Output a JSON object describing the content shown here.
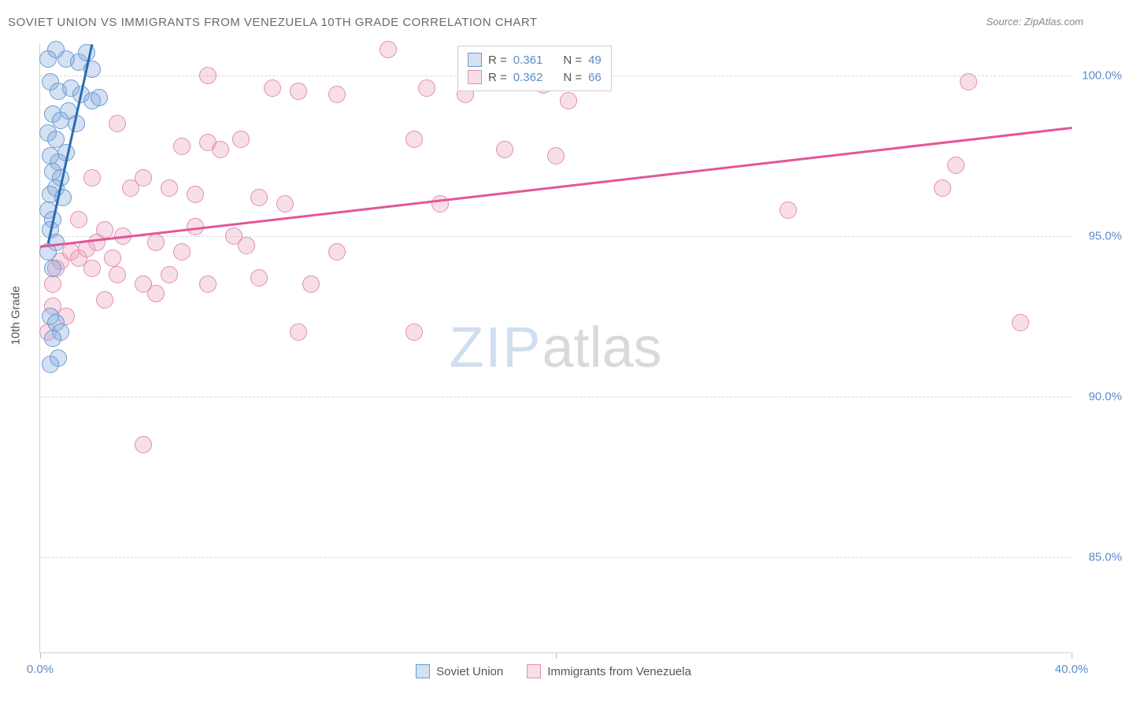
{
  "title": "SOVIET UNION VS IMMIGRANTS FROM VENEZUELA 10TH GRADE CORRELATION CHART",
  "source": "Source: ZipAtlas.com",
  "y_axis_label": "10th Grade",
  "watermark": {
    "part1": "ZIP",
    "part2": "atlas"
  },
  "chart": {
    "type": "scatter",
    "xlim": [
      0,
      40
    ],
    "ylim": [
      82,
      101
    ],
    "x_ticks": [
      0,
      20,
      40
    ],
    "x_tick_labels": [
      "0.0%",
      "",
      "40.0%"
    ],
    "y_ticks": [
      85,
      90,
      95,
      100
    ],
    "y_tick_labels": [
      "85.0%",
      "90.0%",
      "95.0%",
      "100.0%"
    ],
    "background_color": "#ffffff",
    "grid_color": "#d8d8d8",
    "axis_color": "#d0d0d0",
    "tick_label_color": "#5b8bc9",
    "tick_label_fontsize": 15,
    "marker_radius": 11,
    "marker_stroke_width": 1.5,
    "trend_line_width": 2.5,
    "series": [
      {
        "name": "Soviet Union",
        "fill_color": "rgba(130,170,220,0.35)",
        "stroke_color": "#6A9BD1",
        "line_color": "#2b6cb0",
        "R": "0.361",
        "N": "49",
        "trend": {
          "x1": 0.3,
          "y1": 94.8,
          "x2": 2.0,
          "y2": 101
        },
        "points": [
          [
            0.3,
            100.5
          ],
          [
            0.6,
            100.8
          ],
          [
            1.0,
            100.5
          ],
          [
            1.5,
            100.4
          ],
          [
            1.8,
            100.7
          ],
          [
            2.0,
            100.2
          ],
          [
            0.4,
            99.8
          ],
          [
            0.7,
            99.5
          ],
          [
            1.2,
            99.6
          ],
          [
            1.6,
            99.4
          ],
          [
            2.0,
            99.2
          ],
          [
            2.3,
            99.3
          ],
          [
            0.5,
            98.8
          ],
          [
            0.8,
            98.6
          ],
          [
            1.1,
            98.9
          ],
          [
            1.4,
            98.5
          ],
          [
            0.3,
            98.2
          ],
          [
            0.6,
            98.0
          ],
          [
            0.4,
            97.5
          ],
          [
            0.7,
            97.3
          ],
          [
            1.0,
            97.6
          ],
          [
            0.5,
            97.0
          ],
          [
            0.8,
            96.8
          ],
          [
            0.4,
            96.3
          ],
          [
            0.6,
            96.5
          ],
          [
            0.9,
            96.2
          ],
          [
            0.3,
            95.8
          ],
          [
            0.5,
            95.5
          ],
          [
            0.4,
            95.2
          ],
          [
            0.6,
            94.8
          ],
          [
            0.3,
            94.5
          ],
          [
            0.5,
            94.0
          ],
          [
            0.4,
            92.5
          ],
          [
            0.6,
            92.3
          ],
          [
            0.8,
            92.0
          ],
          [
            0.5,
            91.8
          ],
          [
            0.7,
            91.2
          ],
          [
            0.4,
            91.0
          ]
        ]
      },
      {
        "name": "Immigrants from Venezuela",
        "fill_color": "rgba(235,160,190,0.35)",
        "stroke_color": "#E08FB0",
        "line_color": "#e55596",
        "R": "0.362",
        "N": "66",
        "trend": {
          "x1": 0,
          "y1": 94.7,
          "x2": 40,
          "y2": 98.4
        },
        "points": [
          [
            13.5,
            100.8
          ],
          [
            6.5,
            100.0
          ],
          [
            9.0,
            99.6
          ],
          [
            10.0,
            99.5
          ],
          [
            11.5,
            99.4
          ],
          [
            15.0,
            99.6
          ],
          [
            16.5,
            99.4
          ],
          [
            19.5,
            99.7
          ],
          [
            20.5,
            99.2
          ],
          [
            36.0,
            99.8
          ],
          [
            3.0,
            98.5
          ],
          [
            5.5,
            97.8
          ],
          [
            6.5,
            97.9
          ],
          [
            7.0,
            97.7
          ],
          [
            7.8,
            98.0
          ],
          [
            14.5,
            98.0
          ],
          [
            18.0,
            97.7
          ],
          [
            20.0,
            97.5
          ],
          [
            35.5,
            97.2
          ],
          [
            2.0,
            96.8
          ],
          [
            3.5,
            96.5
          ],
          [
            4.0,
            96.8
          ],
          [
            5.0,
            96.5
          ],
          [
            6.0,
            96.3
          ],
          [
            8.5,
            96.2
          ],
          [
            9.5,
            96.0
          ],
          [
            15.5,
            96.0
          ],
          [
            35.0,
            96.5
          ],
          [
            29.0,
            95.8
          ],
          [
            1.5,
            95.5
          ],
          [
            2.5,
            95.2
          ],
          [
            3.2,
            95.0
          ],
          [
            4.5,
            94.8
          ],
          [
            5.5,
            94.5
          ],
          [
            6.0,
            95.3
          ],
          [
            7.5,
            95.0
          ],
          [
            8.0,
            94.7
          ],
          [
            11.5,
            94.5
          ],
          [
            0.8,
            94.2
          ],
          [
            1.2,
            94.5
          ],
          [
            2.0,
            94.0
          ],
          [
            3.0,
            93.8
          ],
          [
            4.0,
            93.5
          ],
          [
            5.0,
            93.8
          ],
          [
            6.5,
            93.5
          ],
          [
            8.5,
            93.7
          ],
          [
            10.5,
            93.5
          ],
          [
            2.5,
            93.0
          ],
          [
            4.5,
            93.2
          ],
          [
            0.5,
            92.8
          ],
          [
            1.0,
            92.5
          ],
          [
            1.5,
            94.3
          ],
          [
            1.8,
            94.6
          ],
          [
            2.2,
            94.8
          ],
          [
            2.8,
            94.3
          ],
          [
            10.0,
            92.0
          ],
          [
            14.5,
            92.0
          ],
          [
            38.0,
            92.3
          ],
          [
            4.0,
            88.5
          ],
          [
            0.5,
            93.5
          ],
          [
            0.3,
            92.0
          ],
          [
            0.6,
            94.0
          ]
        ]
      }
    ]
  },
  "legend_stats": {
    "R_label": "R =",
    "N_label": "N ="
  },
  "bottom_legend": {
    "series1": "Soviet Union",
    "series2": "Immigrants from Venezuela"
  }
}
